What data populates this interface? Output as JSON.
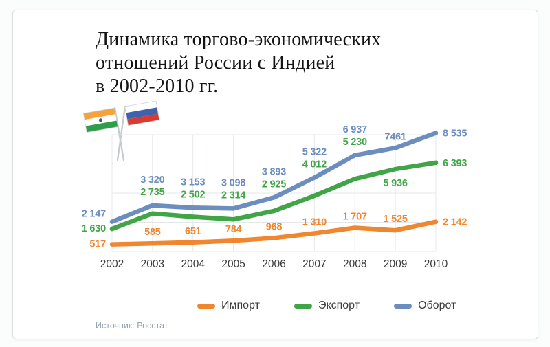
{
  "header": {
    "title_lines": [
      "Динамика торгово-экономических",
      "отношений России с Индией",
      "в 2002-2010 гг."
    ]
  },
  "flags": {
    "left_icon": "india-flag-icon",
    "right_icon": "russia-flag-icon",
    "india_colors": [
      "#F9A23C",
      "#FFFFFF",
      "#2E9E4B",
      "#3A57A8"
    ],
    "russia_colors": [
      "#FFFFFF",
      "#3E63AE",
      "#D93B31"
    ]
  },
  "chart_data": {
    "type": "line",
    "title": "Динамика торгово-экономических отношений России с Индией в 2002-2010 гг.",
    "x": [
      "2002",
      "2003",
      "2004",
      "2005",
      "2006",
      "2007",
      "2008",
      "2009",
      "2010"
    ],
    "series": [
      {
        "name": "Импорт",
        "color": "#F0862F",
        "values": [
          517,
          585,
          651,
          784,
          968,
          1310,
          1707,
          1525,
          2142
        ],
        "labels": [
          "517",
          "585",
          "651",
          "784",
          "968",
          "1 310",
          "1 707",
          "1 525",
          "2 142"
        ],
        "label_pos": [
          "left",
          "above",
          "above",
          "above",
          "above",
          "above",
          "above",
          "above",
          "right"
        ]
      },
      {
        "name": "Экспорт",
        "color": "#41A447",
        "values": [
          1630,
          2735,
          2502,
          2314,
          2925,
          4012,
          5230,
          5936,
          6393
        ],
        "labels": [
          "1 630",
          "2 735",
          "2 502",
          "2 314",
          "2 925",
          "4 012",
          "5 230",
          "5 936",
          "6 393"
        ],
        "label_pos": [
          "left",
          "stack",
          "stack",
          "stack",
          "stack",
          "stack",
          "stack",
          "below",
          "right"
        ]
      },
      {
        "name": "Оборот",
        "color": "#6C8EBF",
        "values": [
          2147,
          3320,
          3153,
          3098,
          3893,
          5322,
          6937,
          7461,
          8535
        ],
        "labels": [
          "2 147",
          "3 320",
          "3 153",
          "3 098",
          "3 893",
          "5 322",
          "6 937",
          "7461",
          "8 535"
        ],
        "label_pos": [
          "left",
          "hi",
          "hi",
          "hi",
          "hi",
          "hi",
          "hi",
          "above",
          "right"
        ]
      }
    ],
    "ylim": [
      0,
      9000
    ],
    "grid": true,
    "grid_color": "#e4e7e9",
    "legend_position": "bottom",
    "axis_label_color": "#3c3c3c"
  },
  "legend": {
    "items": [
      {
        "label": "Импорт",
        "color": "#F0862F"
      },
      {
        "label": "Экспорт",
        "color": "#41A447"
      },
      {
        "label": "Оборот",
        "color": "#6C8EBF"
      }
    ]
  },
  "source": {
    "text": "Источник: Росстат"
  }
}
